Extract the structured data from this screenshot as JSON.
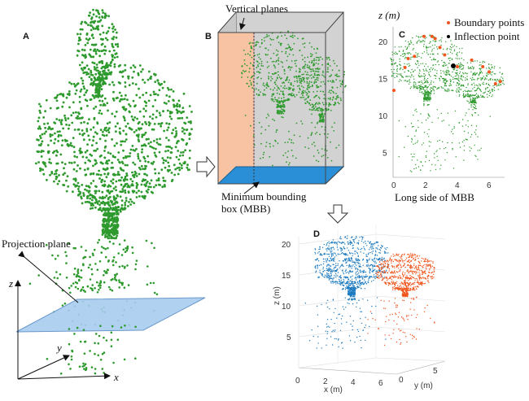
{
  "panels": {
    "a": {
      "label": "A",
      "projection_plane": "Projection plane",
      "axis_x": "x",
      "axis_y": "y",
      "axis_z": "z"
    },
    "b": {
      "label": "B",
      "vertical_planes": "Vertical planes",
      "mbb_line1": "Minimum bounding",
      "mbb_line2": "box (MBB)"
    },
    "c": {
      "label": "C",
      "ylabel": "z (m)",
      "xlabel": "Long side of MBB",
      "legend": [
        "Boundary points",
        "Inflection point"
      ],
      "xticks": [
        "0",
        "2",
        "4",
        "6"
      ],
      "yticks": [
        "5",
        "10",
        "15",
        "20"
      ]
    },
    "d": {
      "label": "D",
      "zlabel": "z (m)",
      "xlabel": "x (m)",
      "ylabel": "y (m)",
      "xticks": [
        "0",
        "2",
        "4",
        "6"
      ],
      "yticks": [
        "0",
        "5"
      ],
      "zticks": [
        "5",
        "10",
        "15",
        "20"
      ]
    }
  },
  "colors": {
    "green": "#2e9a2e",
    "blue": "#1f7cc0",
    "orange": "#f0561e",
    "plane_blue": "#a9cdef",
    "plane_orange": "#f7c3a3",
    "box_gray": "#d0d0d0"
  }
}
